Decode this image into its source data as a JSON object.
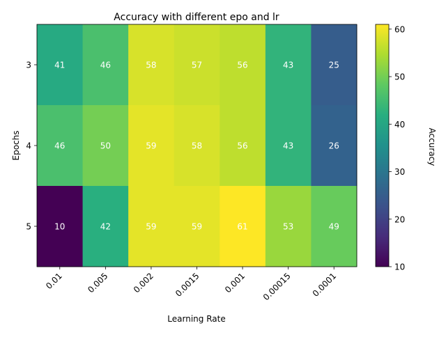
{
  "chart_data": {
    "type": "heatmap",
    "title": "Accuracy with different epo and lr",
    "xlabel": "Learning Rate",
    "ylabel": "Epochs",
    "x": [
      "0.01",
      "0.005",
      "0.002",
      "0.0015",
      "0.001",
      "0.00015",
      "0.0001"
    ],
    "y": [
      "3",
      "4",
      "5"
    ],
    "values": [
      [
        41,
        46,
        58,
        57,
        56,
        43,
        25
      ],
      [
        46,
        50,
        59,
        58,
        56,
        43,
        26
      ],
      [
        10,
        42,
        59,
        59,
        61,
        53,
        49
      ]
    ],
    "colorbar": {
      "label": "Accuracy",
      "range": [
        10,
        61
      ],
      "ticks": [
        10,
        20,
        30,
        40,
        50,
        60
      ],
      "colormap": "viridis"
    },
    "cell_label_color": "#ffffff",
    "grid": false
  }
}
